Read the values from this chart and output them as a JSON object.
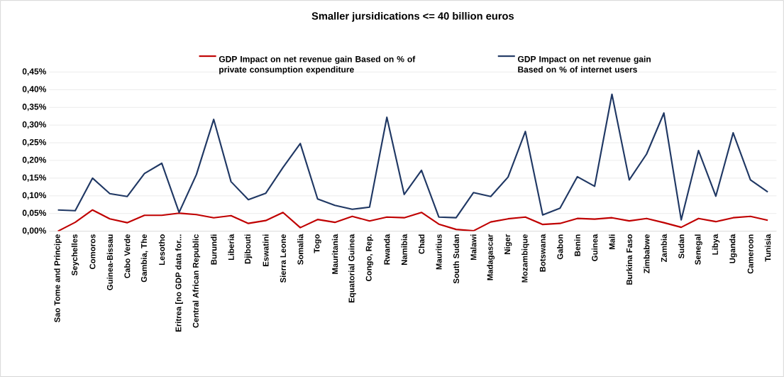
{
  "chart_data": {
    "type": "line",
    "title": "Smaller jursidications <= 40 billion euros",
    "categories": [
      "Sao Tome and Principe",
      "Seychelles",
      "Comoros",
      "Guinea-Bissau",
      "Cabo Verde",
      "Gambia, The",
      "Lesotho",
      "Eritrea [no GDP data for...",
      "Central African Republic",
      "Burundi",
      "Liberia",
      "Djibouti",
      "Eswatini",
      "Sierra Leone",
      "Somalia",
      "Togo",
      "Mauritania",
      "Equatorial Guinea",
      "Congo, Rep.",
      "Rwanda",
      "Namibia",
      "Chad",
      "Mauritius",
      "South Sudan",
      "Malawi",
      "Madagascar",
      "Niger",
      "Mozambique",
      "Botswana",
      "Gabon",
      "Benin",
      "Guinea",
      "Mali",
      "Burkina Faso",
      "Zimbabwe",
      "Zambia",
      "Sudan",
      "Senegal",
      "Libya",
      "Uganda",
      "Cameroon",
      "Tunisia"
    ],
    "series": [
      {
        "name": "GDP Impact on net revenue gain Based on % of private consumption expenditure",
        "color": "#c00000",
        "values": [
          0.0,
          0.025,
          0.06,
          0.035,
          0.024,
          0.045,
          0.045,
          0.051,
          0.047,
          0.038,
          0.044,
          0.022,
          0.03,
          0.053,
          0.01,
          0.033,
          0.025,
          0.042,
          0.029,
          0.04,
          0.038,
          0.053,
          0.02,
          0.005,
          0.001,
          0.026,
          0.035,
          0.04,
          0.019,
          0.022,
          0.036,
          0.034,
          0.038,
          0.029,
          0.036,
          0.024,
          0.011,
          0.036,
          0.027,
          0.038,
          0.042,
          0.031
        ]
      },
      {
        "name": "GDP Impact on net revenue gain Based on % of internet users",
        "color": "#203864",
        "values": [
          0.06,
          0.058,
          0.15,
          0.106,
          0.098,
          0.163,
          0.192,
          0.053,
          0.16,
          0.316,
          0.14,
          0.089,
          0.107,
          0.18,
          0.248,
          0.091,
          0.073,
          0.062,
          0.068,
          0.322,
          0.104,
          0.172,
          0.04,
          0.038,
          0.109,
          0.098,
          0.153,
          0.282,
          0.046,
          0.065,
          0.154,
          0.127,
          0.387,
          0.145,
          0.218,
          0.334,
          0.032,
          0.228,
          0.099,
          0.278,
          0.145,
          0.111
        ]
      }
    ],
    "ylim": [
      0,
      0.45
    ],
    "yticks": [
      {
        "value": 0,
        "label": "0,00%"
      },
      {
        "value": 0.05,
        "label": "0,05%"
      },
      {
        "value": 0.1,
        "label": "0,10%"
      },
      {
        "value": 0.15,
        "label": "0,15%"
      },
      {
        "value": 0.2,
        "label": "0,20%"
      },
      {
        "value": 0.25,
        "label": "0,25%"
      },
      {
        "value": 0.3,
        "label": "0,30%"
      },
      {
        "value": 0.35,
        "label": "0,35%"
      },
      {
        "value": 0.4,
        "label": "0,40%"
      },
      {
        "value": 0.45,
        "label": "0,45%"
      }
    ],
    "grid": "y",
    "legend": "top",
    "marker": "none",
    "line_style": "solid"
  }
}
